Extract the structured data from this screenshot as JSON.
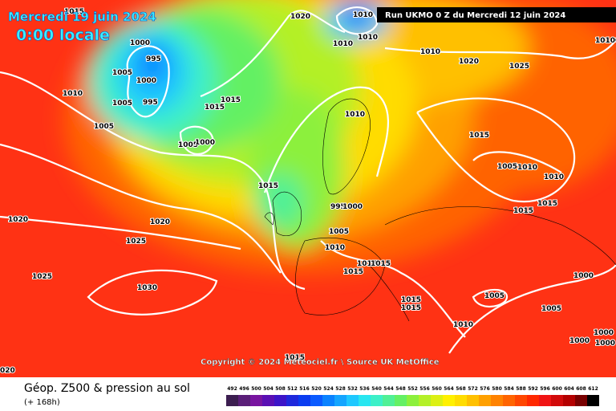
{
  "header": {
    "date": "Mercredi 19 juin 2024",
    "time": "0:00 locale",
    "run": "Run UKMO 0 Z du Mercredi 12 juin 2024"
  },
  "credit": "Copyright © 2024 Meteociel.fr \\ Source UK MetOffice",
  "footer": {
    "title": "Géop. Z500 & pression au sol",
    "lead": "(+ 168h)"
  },
  "isobar_labels": [
    "1015",
    "1000",
    "995",
    "1005",
    "1000",
    "995",
    "1010",
    "1005",
    "1005",
    "1015",
    "1015",
    "1005",
    "1000",
    "1020",
    "1010",
    "1010",
    "1010",
    "1010",
    "1020",
    "1025",
    "1010",
    "1015",
    "1005",
    "1010",
    "1010",
    "1015",
    "1015",
    "1015",
    "995",
    "1000",
    "1020",
    "1020",
    "1025",
    "1025",
    "1030",
    "1005",
    "1010",
    "1015",
    "1015",
    "1015",
    "1000",
    "1005",
    "1015",
    "1015",
    "1005",
    "1010",
    "1000",
    "1000",
    "1000",
    "1015",
    "020",
    "10100"
  ],
  "legend": {
    "steps": [
      492,
      496,
      500,
      504,
      508,
      512,
      516,
      520,
      524,
      528,
      532,
      536,
      540,
      544,
      548,
      552,
      556,
      560,
      564,
      568,
      572,
      576,
      580,
      584,
      588,
      592,
      596,
      600,
      604,
      608,
      612
    ],
    "colors": [
      "#3c1e50",
      "#5a1e78",
      "#7814a0",
      "#5a0fb4",
      "#3c14c8",
      "#1e28dc",
      "#0a3cf0",
      "#0a5aff",
      "#0a82ff",
      "#14a5ff",
      "#1ec8ff",
      "#28e6f0",
      "#3cf0c8",
      "#50f096",
      "#64f064",
      "#8cf03c",
      "#b4f028",
      "#dcf014",
      "#fff000",
      "#ffdc00",
      "#ffc000",
      "#ffa000",
      "#ff8200",
      "#ff6400",
      "#ff4600",
      "#ff2800",
      "#f01414",
      "#d20a0a",
      "#b40000",
      "#780000",
      "#000000"
    ]
  }
}
